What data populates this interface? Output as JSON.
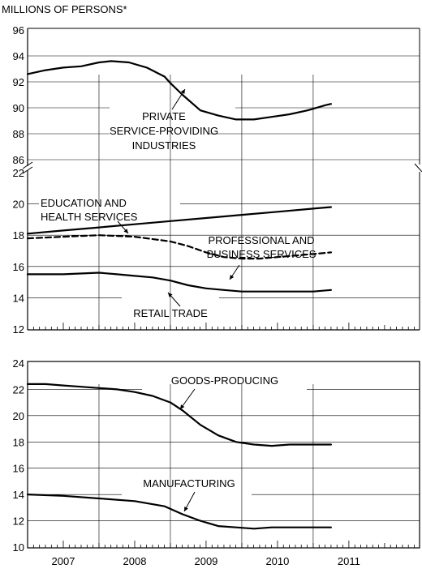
{
  "header": {
    "y_unit_label": "MILLIONS OF PERSONS*"
  },
  "chart_data": [
    {
      "type": "line",
      "panel": "top",
      "ylim": [
        12,
        96
      ],
      "axis_break": [
        22,
        86
      ],
      "yticks": [
        12,
        14,
        16,
        18,
        20,
        22,
        86,
        88,
        90,
        92,
        94,
        96
      ],
      "x_range": [
        2006.5,
        2011.99
      ],
      "series": [
        {
          "key": "private",
          "name": "PRIVATE SERVICE-PROVIDING INDUSTRIES",
          "label_lines": [
            "PRIVATE",
            "SERVICE-PROVIDING",
            "INDUSTRIES"
          ],
          "style": "solid",
          "x": [
            2006.5,
            2006.75,
            2007.0,
            2007.25,
            2007.5,
            2007.67,
            2007.92,
            2008.17,
            2008.42,
            2008.5,
            2008.67,
            2008.92,
            2009.17,
            2009.42,
            2009.67,
            2009.92,
            2010.17,
            2010.42,
            2010.67,
            2010.75
          ],
          "values": [
            92.6,
            92.9,
            93.1,
            93.2,
            93.5,
            93.6,
            93.5,
            93.1,
            92.4,
            91.9,
            91.0,
            89.8,
            89.4,
            89.1,
            89.1,
            89.3,
            89.5,
            89.8,
            90.2,
            90.3
          ]
        },
        {
          "key": "education",
          "name": "EDUCATION AND HEALTH SERVICES",
          "label_lines": [
            "EDUCATION AND",
            "HEALTH SERVICES"
          ],
          "style": "solid",
          "x": [
            2006.5,
            2007.0,
            2007.5,
            2008.0,
            2008.5,
            2009.0,
            2009.5,
            2010.0,
            2010.5,
            2010.75
          ],
          "values": [
            18.1,
            18.3,
            18.5,
            18.7,
            18.9,
            19.1,
            19.3,
            19.5,
            19.7,
            19.8
          ]
        },
        {
          "key": "professional",
          "name": "PROFESSIONAL AND BUSINESS SERVICES",
          "label_lines": [
            "PROFESSIONAL AND",
            "BUSINESS SERVICES"
          ],
          "style": "dashed",
          "x": [
            2006.5,
            2007.0,
            2007.5,
            2008.0,
            2008.5,
            2008.75,
            2009.0,
            2009.25,
            2009.5,
            2009.75,
            2010.0,
            2010.25,
            2010.5,
            2010.75
          ],
          "values": [
            17.8,
            17.9,
            18.0,
            17.9,
            17.6,
            17.3,
            16.9,
            16.6,
            16.5,
            16.5,
            16.6,
            16.7,
            16.8,
            16.9
          ]
        },
        {
          "key": "retail",
          "name": "RETAIL TRADE",
          "label_lines": [
            "RETAIL TRADE"
          ],
          "style": "solid",
          "x": [
            2006.5,
            2007.0,
            2007.5,
            2007.75,
            2008.0,
            2008.25,
            2008.5,
            2008.75,
            2009.0,
            2009.25,
            2009.5,
            2009.75,
            2010.0,
            2010.25,
            2010.5,
            2010.75
          ],
          "values": [
            15.5,
            15.5,
            15.6,
            15.5,
            15.4,
            15.3,
            15.1,
            14.8,
            14.6,
            14.5,
            14.4,
            14.4,
            14.4,
            14.4,
            14.4,
            14.5
          ]
        }
      ]
    },
    {
      "type": "line",
      "panel": "bottom",
      "ylim": [
        10,
        24
      ],
      "yticks": [
        10,
        12,
        14,
        16,
        18,
        20,
        22,
        24
      ],
      "x_range": [
        2006.5,
        2011.99
      ],
      "series": [
        {
          "key": "goods",
          "name": "GOODS-PRODUCING",
          "label_lines": [
            "GOODS-PRODUCING"
          ],
          "style": "solid",
          "x": [
            2006.5,
            2006.75,
            2007.0,
            2007.25,
            2007.5,
            2007.75,
            2008.0,
            2008.25,
            2008.5,
            2008.67,
            2008.92,
            2009.17,
            2009.42,
            2009.67,
            2009.92,
            2010.17,
            2010.42,
            2010.67,
            2010.75
          ],
          "values": [
            22.4,
            22.4,
            22.3,
            22.2,
            22.1,
            22.0,
            21.8,
            21.5,
            21.0,
            20.4,
            19.3,
            18.5,
            18.0,
            17.8,
            17.7,
            17.8,
            17.8,
            17.8,
            17.8
          ]
        },
        {
          "key": "manufacturing",
          "name": "MANUFACTURING",
          "label_lines": [
            "MANUFACTURING"
          ],
          "style": "solid",
          "x": [
            2006.5,
            2007.0,
            2007.5,
            2008.0,
            2008.42,
            2008.67,
            2008.92,
            2009.17,
            2009.42,
            2009.67,
            2009.92,
            2010.17,
            2010.42,
            2010.75
          ],
          "values": [
            14.0,
            13.9,
            13.7,
            13.5,
            13.1,
            12.5,
            12.0,
            11.6,
            11.5,
            11.4,
            11.5,
            11.5,
            11.5,
            11.5
          ]
        }
      ],
      "xtick_labels": [
        "2007",
        "2008",
        "2009",
        "2010",
        "2011"
      ]
    }
  ]
}
